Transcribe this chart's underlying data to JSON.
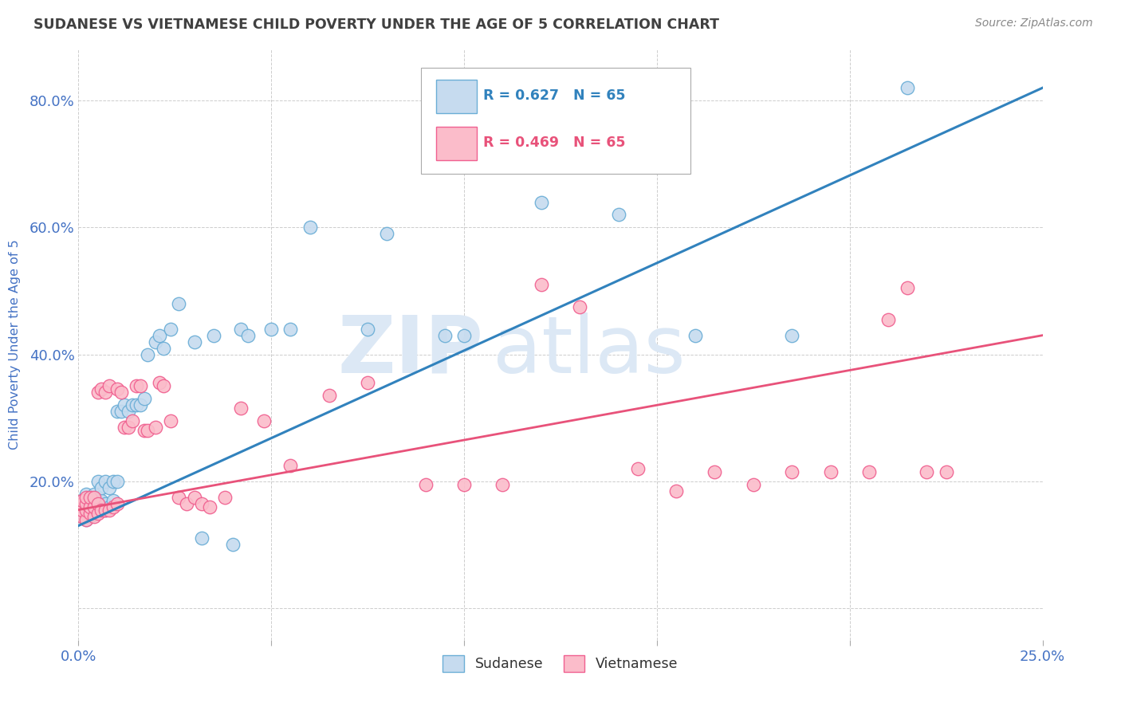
{
  "title": "SUDANESE VS VIETNAMESE CHILD POVERTY UNDER THE AGE OF 5 CORRELATION CHART",
  "source": "Source: ZipAtlas.com",
  "ylabel": "Child Poverty Under the Age of 5",
  "xlim": [
    0.0,
    0.25
  ],
  "ylim": [
    -0.05,
    0.88
  ],
  "xticks": [
    0.0,
    0.05,
    0.1,
    0.15,
    0.2,
    0.25
  ],
  "xticklabels": [
    "0.0%",
    "",
    "",
    "",
    "",
    "25.0%"
  ],
  "yticks": [
    0.0,
    0.2,
    0.4,
    0.6,
    0.8
  ],
  "yticklabels": [
    "",
    "20.0%",
    "40.0%",
    "60.0%",
    "80.0%"
  ],
  "sudanese_R": 0.627,
  "sudanese_N": 65,
  "vietnamese_R": 0.469,
  "vietnamese_N": 65,
  "sudanese_color": "#6baed6",
  "sudanese_fill": "#c6dbef",
  "vietnamese_color": "#f06090",
  "vietnamese_fill": "#fbbcca",
  "sudanese_line_color": "#3182bd",
  "vietnamese_line_color": "#e8527a",
  "background_color": "#ffffff",
  "grid_color": "#c8c8c8",
  "title_color": "#404040",
  "axis_label_color": "#4472c4",
  "tick_color": "#4472c4",
  "watermark_zip": "ZIP",
  "watermark_atlas": "atlas",
  "watermark_color": "#dce8f5",
  "sudanese_x": [
    0.001,
    0.001,
    0.001,
    0.001,
    0.001,
    0.002,
    0.002,
    0.002,
    0.002,
    0.002,
    0.003,
    0.003,
    0.003,
    0.003,
    0.004,
    0.004,
    0.004,
    0.004,
    0.005,
    0.005,
    0.005,
    0.005,
    0.006,
    0.006,
    0.006,
    0.007,
    0.007,
    0.007,
    0.008,
    0.008,
    0.009,
    0.009,
    0.01,
    0.01,
    0.011,
    0.012,
    0.013,
    0.014,
    0.015,
    0.016,
    0.017,
    0.018,
    0.02,
    0.021,
    0.022,
    0.024,
    0.026,
    0.03,
    0.032,
    0.035,
    0.04,
    0.042,
    0.044,
    0.05,
    0.055,
    0.06,
    0.075,
    0.08,
    0.095,
    0.1,
    0.12,
    0.14,
    0.16,
    0.185,
    0.215
  ],
  "sudanese_y": [
    0.145,
    0.15,
    0.155,
    0.16,
    0.17,
    0.14,
    0.15,
    0.16,
    0.175,
    0.18,
    0.145,
    0.155,
    0.165,
    0.175,
    0.15,
    0.16,
    0.17,
    0.18,
    0.155,
    0.165,
    0.175,
    0.2,
    0.16,
    0.17,
    0.19,
    0.155,
    0.165,
    0.2,
    0.16,
    0.19,
    0.17,
    0.2,
    0.2,
    0.31,
    0.31,
    0.32,
    0.31,
    0.32,
    0.32,
    0.32,
    0.33,
    0.4,
    0.42,
    0.43,
    0.41,
    0.44,
    0.48,
    0.42,
    0.11,
    0.43,
    0.1,
    0.44,
    0.43,
    0.44,
    0.44,
    0.6,
    0.44,
    0.59,
    0.43,
    0.43,
    0.64,
    0.62,
    0.43,
    0.43,
    0.82
  ],
  "vietnamese_x": [
    0.001,
    0.001,
    0.001,
    0.001,
    0.002,
    0.002,
    0.002,
    0.002,
    0.003,
    0.003,
    0.003,
    0.004,
    0.004,
    0.004,
    0.005,
    0.005,
    0.005,
    0.006,
    0.006,
    0.007,
    0.007,
    0.008,
    0.008,
    0.009,
    0.01,
    0.01,
    0.011,
    0.012,
    0.013,
    0.014,
    0.015,
    0.016,
    0.017,
    0.018,
    0.02,
    0.021,
    0.022,
    0.024,
    0.026,
    0.028,
    0.03,
    0.032,
    0.034,
    0.038,
    0.042,
    0.048,
    0.055,
    0.065,
    0.075,
    0.09,
    0.1,
    0.11,
    0.12,
    0.13,
    0.145,
    0.155,
    0.165,
    0.175,
    0.185,
    0.195,
    0.205,
    0.21,
    0.215,
    0.22,
    0.225
  ],
  "vietnamese_y": [
    0.145,
    0.155,
    0.165,
    0.17,
    0.14,
    0.155,
    0.165,
    0.175,
    0.15,
    0.16,
    0.175,
    0.145,
    0.16,
    0.175,
    0.15,
    0.165,
    0.34,
    0.155,
    0.345,
    0.155,
    0.34,
    0.155,
    0.35,
    0.16,
    0.165,
    0.345,
    0.34,
    0.285,
    0.285,
    0.295,
    0.35,
    0.35,
    0.28,
    0.28,
    0.285,
    0.355,
    0.35,
    0.295,
    0.175,
    0.165,
    0.175,
    0.165,
    0.16,
    0.175,
    0.315,
    0.295,
    0.225,
    0.335,
    0.355,
    0.195,
    0.195,
    0.195,
    0.51,
    0.475,
    0.22,
    0.185,
    0.215,
    0.195,
    0.215,
    0.215,
    0.215,
    0.455,
    0.505,
    0.215,
    0.215
  ]
}
